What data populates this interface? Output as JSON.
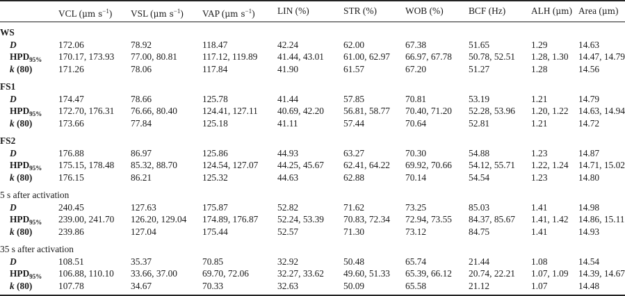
{
  "columns": [
    {
      "label": "VCL (",
      "unit": "μm s",
      "sup": "−1",
      "close": ")"
    },
    {
      "label": "VSL (",
      "unit": "μm s",
      "sup": "−1",
      "close": ")"
    },
    {
      "label": "VAP (",
      "unit": "μm s",
      "sup": "−1",
      "close": ")"
    },
    {
      "label": "LIN (%)",
      "unit": "",
      "sup": "",
      "close": ""
    },
    {
      "label": "STR (%)",
      "unit": "",
      "sup": "",
      "close": ""
    },
    {
      "label": "WOB (%)",
      "unit": "",
      "sup": "",
      "close": ""
    },
    {
      "label": "BCF (Hz)",
      "unit": "",
      "sup": "",
      "close": ""
    },
    {
      "label": "ALH (",
      "unit": "μm",
      "sup": "",
      "close": ")"
    },
    {
      "label": "Area (",
      "unit": "μm",
      "sup": "",
      "close": ")"
    }
  ],
  "row_labels": {
    "d": "D",
    "hpd_main": "HPD",
    "hpd_sub": "95%",
    "k_italic": "k",
    "k_rest": " (80)"
  },
  "groups": [
    {
      "name": "WS",
      "bold": true,
      "d": [
        "172.06",
        "78.92",
        "118.47",
        "42.24",
        "62.00",
        "67.38",
        "51.65",
        "1.29",
        "14.63"
      ],
      "hpd": [
        "170.17, 173.93",
        "77.00, 80.81",
        "117.12, 119.89",
        "41.44, 43.01",
        "61.00, 62.97",
        "66.97, 67.78",
        "50.78, 52.51",
        "1.28, 1.30",
        "14.47, 14.79"
      ],
      "k": [
        "171.26",
        "78.06",
        "117.84",
        "41.90",
        "61.57",
        "67.20",
        "51.27",
        "1.28",
        "14.56"
      ]
    },
    {
      "name": "FS1",
      "bold": true,
      "d": [
        "174.47",
        "78.66",
        "125.78",
        "41.44",
        "57.85",
        "70.81",
        "53.19",
        "1.21",
        "14.79"
      ],
      "hpd": [
        "172.70, 176.31",
        "76.66, 80.40",
        "124.41, 127.11",
        "40.69, 42.20",
        "56.81, 58.77",
        "70.40, 71.20",
        "52.28, 53.96",
        "1.20, 1.22",
        "14.63, 14.94"
      ],
      "k": [
        "173.66",
        "77.84",
        "125.18",
        "41.11",
        "57.44",
        "70.64",
        "52.81",
        "1.21",
        "14.72"
      ]
    },
    {
      "name": "FS2",
      "bold": true,
      "d": [
        "176.88",
        "86.97",
        "125.86",
        "44.93",
        "63.27",
        "70.30",
        "54.88",
        "1.23",
        "14.87"
      ],
      "hpd": [
        "175.15, 178.48",
        "85.32, 88.70",
        "124.54, 127.07",
        "44.25, 45.67",
        "62.41, 64.22",
        "69.92, 70.66",
        "54.12, 55.71",
        "1.22, 1.24",
        "14.71, 15.02"
      ],
      "k": [
        "176.15",
        "86.21",
        "125.32",
        "44.63",
        "62.88",
        "70.14",
        "54.54",
        "1.23",
        "14.80"
      ]
    },
    {
      "name": "5 s after activation",
      "bold": false,
      "d": [
        "240.45",
        "127.63",
        "175.87",
        "52.82",
        "71.62",
        "73.25",
        "85.03",
        "1.41",
        "14.98"
      ],
      "hpd": [
        "239.00, 241.70",
        "126.20, 129.04",
        "174.89, 176.87",
        "52.24, 53.39",
        "70.83, 72.34",
        "72.94, 73.55",
        "84.37, 85.67",
        "1.41, 1.42",
        "14.86, 15.11"
      ],
      "k": [
        "239.86",
        "127.04",
        "175.44",
        "52.57",
        "71.30",
        "73.12",
        "84.75",
        "1.41",
        "14.93"
      ]
    },
    {
      "name": "35 s after activation",
      "bold": false,
      "d": [
        "108.51",
        "35.37",
        "70.85",
        "32.92",
        "50.48",
        "65.74",
        "21.44",
        "1.08",
        "14.54"
      ],
      "hpd": [
        "106.88, 110.10",
        "33.66, 37.00",
        "69.70, 72.06",
        "32.27, 33.62",
        "49.60, 51.33",
        "65.39, 66.12",
        "20.74, 22.21",
        "1.07, 1.09",
        "14.39, 14.67"
      ],
      "k": [
        "107.78",
        "34.67",
        "70.33",
        "32.63",
        "50.09",
        "65.58",
        "21.12",
        "1.07",
        "14.48"
      ]
    }
  ]
}
